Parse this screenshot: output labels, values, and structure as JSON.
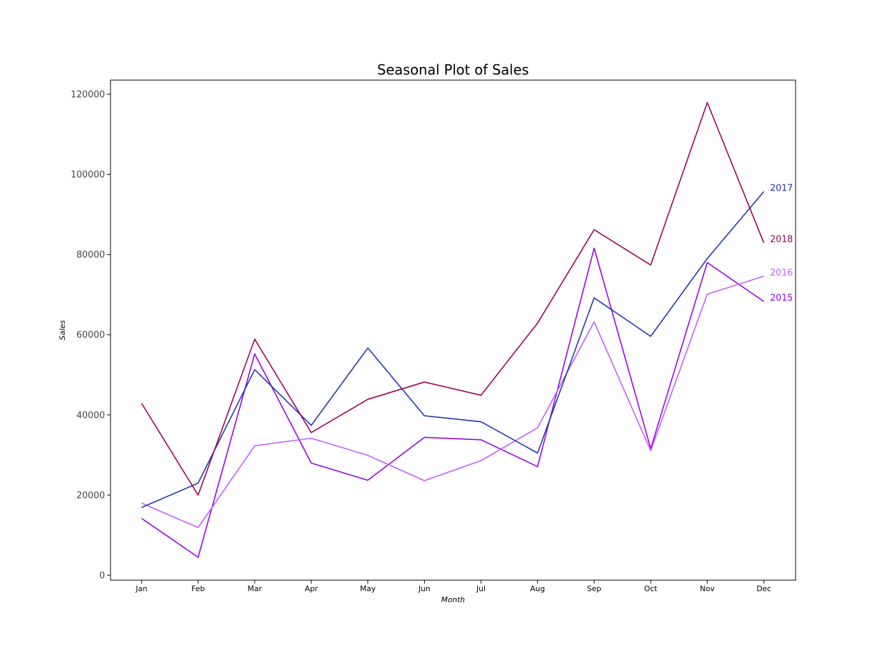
{
  "chart_data": {
    "type": "line",
    "title": "Seasonal Plot of Sales",
    "xlabel": "Month",
    "ylabel": "Sales",
    "categories": [
      "Jan",
      "Feb",
      "Mar",
      "Apr",
      "May",
      "Jun",
      "Jul",
      "Aug",
      "Sep",
      "Oct",
      "Nov",
      "Dec"
    ],
    "ylim": [
      -1200,
      123500
    ],
    "yticks": [
      0,
      20000,
      40000,
      60000,
      80000,
      100000,
      120000
    ],
    "ytick_labels": [
      "0",
      "20000",
      "40000",
      "60000",
      "80000",
      "100000",
      "120000"
    ],
    "grid": false,
    "legend": "none",
    "series": [
      {
        "name": "2015",
        "color": "#9400ea",
        "values": [
          14200,
          4500,
          55200,
          28000,
          23700,
          34400,
          33800,
          27100,
          81600,
          31600,
          78000,
          68300
        ]
      },
      {
        "name": "2016",
        "color": "#c25cff",
        "values": [
          18000,
          11900,
          32300,
          34200,
          29900,
          23600,
          28600,
          36800,
          63200,
          31100,
          70100,
          74600
        ]
      },
      {
        "name": "2017",
        "color": "#2233aa",
        "values": [
          16900,
          23000,
          51300,
          37400,
          56700,
          39800,
          38300,
          30500,
          69200,
          59600,
          79000,
          95700
        ]
      },
      {
        "name": "2018",
        "color": "#990055",
        "values": [
          42900,
          20000,
          58900,
          35600,
          43900,
          48200,
          44900,
          62900,
          86200,
          77400,
          117900,
          82900
        ]
      }
    ]
  }
}
